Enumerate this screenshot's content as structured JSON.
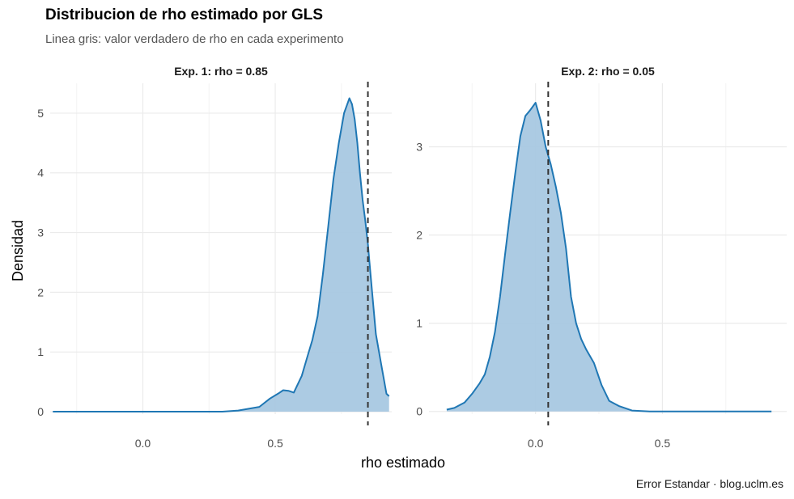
{
  "title": "Distribucion de rho estimado por GLS",
  "subtitle": "Linea gris: valor verdadero de rho en cada experimento",
  "caption": "Error Estandar · blog.uclm.es",
  "colors": {
    "fill": "#a8c8e2",
    "line": "#1f77b4",
    "vline": "#333333",
    "grid": "#ebebeb"
  },
  "chart_data": {
    "type": "area",
    "xlabel": "rho estimado",
    "ylabel": "Densidad",
    "grid": true,
    "legend": "none",
    "panels": [
      {
        "label": "Exp. 1: rho = 0.85",
        "true_rho": 0.85,
        "xlim": [
          -0.35,
          0.94
        ],
        "ylim": [
          -0.04,
          5.5
        ],
        "x_ticks": [
          0.0,
          0.5
        ],
        "x_tick_labels": [
          "0.0",
          "0.5"
        ],
        "y_ticks": [
          0,
          1,
          2,
          3,
          4,
          5
        ],
        "y_tick_labels": [
          "0",
          "1",
          "2",
          "3",
          "4",
          "5"
        ],
        "density": {
          "x": [
            -0.34,
            0.3,
            0.36,
            0.44,
            0.48,
            0.51,
            0.53,
            0.55,
            0.57,
            0.6,
            0.62,
            0.64,
            0.66,
            0.68,
            0.7,
            0.72,
            0.74,
            0.76,
            0.78,
            0.79,
            0.8,
            0.81,
            0.82,
            0.83,
            0.84,
            0.85,
            0.86,
            0.87,
            0.88,
            0.9,
            0.92,
            0.93
          ],
          "y": [
            0.0,
            0.0,
            0.02,
            0.08,
            0.22,
            0.3,
            0.36,
            0.35,
            0.32,
            0.6,
            0.9,
            1.2,
            1.6,
            2.3,
            3.1,
            3.9,
            4.5,
            5.0,
            5.25,
            5.15,
            4.9,
            4.5,
            4.0,
            3.55,
            3.2,
            2.8,
            2.3,
            1.8,
            1.3,
            0.8,
            0.3,
            0.26
          ]
        }
      },
      {
        "label": "Exp. 2: rho = 0.05",
        "true_rho": 0.05,
        "xlim": [
          -0.42,
          0.99
        ],
        "ylim": [
          -0.03,
          3.72
        ],
        "x_ticks": [
          0.0,
          0.5
        ],
        "x_tick_labels": [
          "0.0",
          "0.5"
        ],
        "y_ticks": [
          0,
          1,
          2,
          3
        ],
        "y_tick_labels": [
          "0",
          "1",
          "2",
          "3"
        ],
        "density": {
          "x": [
            -0.35,
            -0.32,
            -0.28,
            -0.25,
            -0.22,
            -0.2,
            -0.18,
            -0.16,
            -0.14,
            -0.12,
            -0.1,
            -0.08,
            -0.06,
            -0.04,
            -0.02,
            0.0,
            0.02,
            0.04,
            0.06,
            0.08,
            0.1,
            0.12,
            0.14,
            0.16,
            0.18,
            0.2,
            0.23,
            0.26,
            0.29,
            0.33,
            0.38,
            0.45,
            0.93
          ],
          "y": [
            0.02,
            0.04,
            0.1,
            0.2,
            0.32,
            0.42,
            0.62,
            0.9,
            1.3,
            1.78,
            2.25,
            2.7,
            3.12,
            3.35,
            3.42,
            3.5,
            3.3,
            3.0,
            2.8,
            2.55,
            2.25,
            1.85,
            1.3,
            1.0,
            0.82,
            0.7,
            0.55,
            0.3,
            0.12,
            0.06,
            0.01,
            0.0,
            0.0
          ]
        }
      }
    ]
  }
}
